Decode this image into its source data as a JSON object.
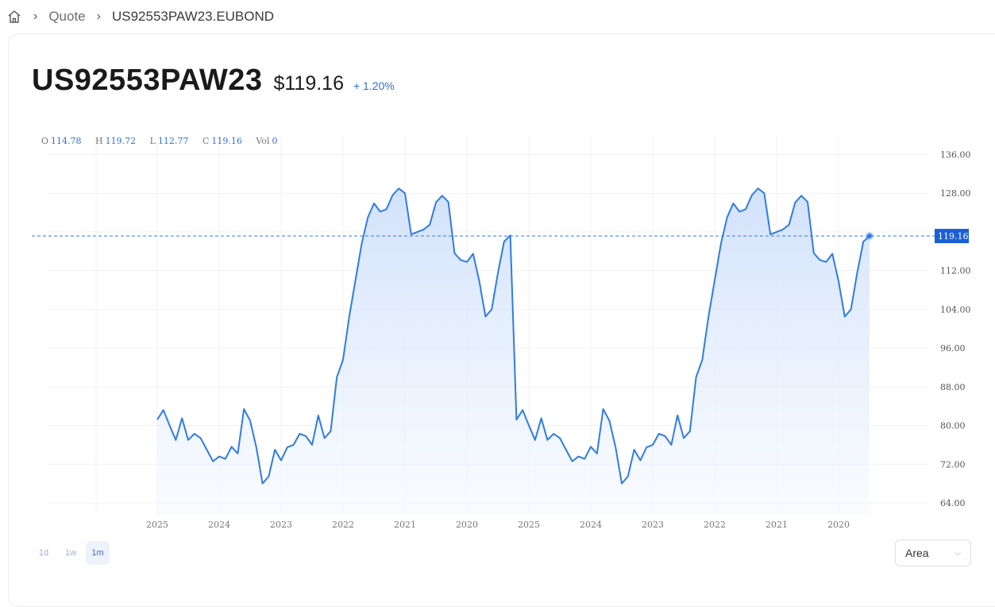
{
  "breadcrumb": {
    "quote": "Quote",
    "current": "US92553PAW23.EUBOND"
  },
  "header": {
    "symbol": "US92553PAW23",
    "price": "$119.16",
    "change": "+ 1.20%"
  },
  "ohlc": {
    "o_label": "O",
    "o": "114.78",
    "h_label": "H",
    "h": "119.72",
    "l_label": "L",
    "l": "112.77",
    "c_label": "C",
    "c": "119.16",
    "vol_label": "Vol",
    "vol": "0"
  },
  "ranges": [
    "1d",
    "1w",
    "1m"
  ],
  "chart_type_select": {
    "value": "Area"
  },
  "colors": {
    "accent": "#2f7be5",
    "fill_top": "#cfe0fb",
    "fill_bottom": "#f5f9ff",
    "price_tag": "#1b5fd6"
  },
  "chart_data": {
    "type": "area",
    "title": "",
    "xlabel": "",
    "ylabel": "",
    "ylim": [
      62,
      138
    ],
    "yticks": [
      64,
      72,
      80,
      88,
      96,
      104,
      112,
      120,
      128,
      136
    ],
    "ytick_labels": [
      "64.00",
      "72.00",
      "80.00",
      "88.00",
      "96.00",
      "104.00",
      "112.00",
      "120.00",
      "128.00",
      "136.00"
    ],
    "xtick_labels": [
      "2025",
      "2024",
      "2023",
      "2022",
      "2021",
      "2020",
      "2025",
      "2024",
      "2023",
      "2022",
      "2021",
      "2020"
    ],
    "last_price_label": "119.16",
    "last_value": 119.16,
    "series": [
      {
        "values": [
          81.2,
          83.2,
          80,
          77,
          81.5,
          77,
          78.3,
          77.4,
          75,
          72.6,
          73.6,
          73.1,
          75.6,
          74.2,
          83.4,
          81,
          75.5,
          68,
          69.5,
          75,
          72.8,
          75.5,
          76,
          78.3,
          77.8,
          76,
          82.1,
          77.4,
          78.8,
          90,
          93.6,
          102.5,
          110,
          117.5,
          123,
          125.9,
          124.2,
          124.7,
          127.6,
          129,
          128,
          119.5,
          120,
          120.5,
          121.5,
          126.1,
          127.5,
          126.2,
          115.6,
          114.2,
          113.8,
          115.5,
          109.8,
          102.5,
          104,
          111.5,
          118,
          119.3,
          81.2,
          83.2,
          80,
          77,
          81.5,
          77,
          78.3,
          77.4,
          75,
          72.6,
          73.6,
          73.1,
          75.6,
          74.2,
          83.4,
          81,
          75.5,
          68,
          69.5,
          75,
          72.8,
          75.5,
          76,
          78.3,
          77.8,
          76,
          82.1,
          77.4,
          78.8,
          90,
          93.6,
          102.5,
          110,
          117.5,
          123,
          125.9,
          124.2,
          124.7,
          127.6,
          129,
          128,
          119.5,
          120,
          120.5,
          121.5,
          126.1,
          127.5,
          126.2,
          115.6,
          114.2,
          113.8,
          115.5,
          109.8,
          102.5,
          104,
          111.5,
          118,
          119.16
        ]
      }
    ]
  }
}
